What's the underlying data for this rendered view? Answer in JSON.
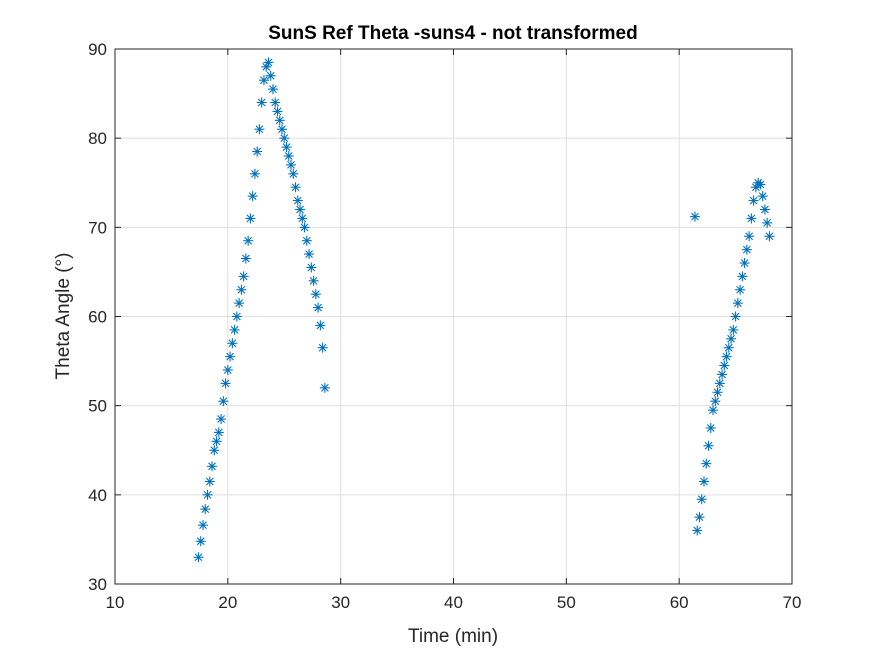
{
  "chart_data": {
    "type": "scatter",
    "title": "SunS Ref Theta -suns4 - not transformed",
    "xlabel": "Time (min)",
    "ylabel": "Theta Angle (°)",
    "xlim": [
      10,
      70
    ],
    "ylim": [
      30,
      90
    ],
    "xticks": [
      "10",
      "20",
      "30",
      "40",
      "50",
      "60",
      "70"
    ],
    "yticks": [
      "30",
      "40",
      "50",
      "60",
      "70",
      "80",
      "90"
    ],
    "grid": true,
    "marker": "asterisk",
    "color": "#0072BD",
    "series": [
      {
        "x": [
          17.4,
          17.6,
          17.8,
          18.0,
          18.2,
          18.4,
          18.6,
          18.8,
          19.0,
          19.2,
          19.4,
          19.6,
          19.8,
          20.0,
          20.2,
          20.4,
          20.6,
          20.8,
          21.0,
          21.2,
          21.4,
          21.6,
          21.8,
          22.0,
          22.2,
          22.4,
          22.6,
          22.8,
          23.0,
          23.2,
          23.4,
          23.6,
          23.8,
          24.0,
          24.2,
          24.4,
          24.6,
          24.8,
          25.0,
          25.2,
          25.4,
          25.6,
          25.8,
          26.0,
          26.2,
          26.4,
          26.6,
          26.8,
          27.0,
          27.2,
          27.4,
          27.6,
          27.8,
          28.0,
          28.2,
          28.4,
          28.6,
          61.4,
          61.6,
          61.8,
          62.0,
          62.2,
          62.4,
          62.6,
          62.8,
          63.0,
          63.2,
          63.4,
          63.6,
          63.8,
          64.0,
          64.2,
          64.4,
          64.6,
          64.8,
          65.0,
          65.2,
          65.4,
          65.6,
          65.8,
          66.0,
          66.2,
          66.4,
          66.6,
          66.8,
          67.0,
          67.2,
          67.4,
          67.6,
          67.8,
          68.0
        ],
        "y": [
          33.0,
          34.8,
          36.6,
          38.4,
          40.0,
          41.5,
          43.2,
          45.0,
          46.0,
          47.0,
          48.5,
          50.5,
          52.5,
          54.0,
          55.5,
          57.0,
          58.5,
          60.0,
          61.5,
          63.0,
          64.5,
          66.5,
          68.5,
          71.0,
          73.5,
          76.0,
          78.5,
          81.0,
          84.0,
          86.5,
          88.0,
          88.5,
          87.0,
          85.5,
          84.0,
          83.0,
          82.0,
          81.0,
          80.0,
          79.0,
          78.0,
          77.0,
          76.0,
          74.5,
          73.0,
          72.0,
          71.0,
          70.0,
          68.5,
          67.0,
          65.5,
          64.0,
          62.5,
          61.0,
          59.0,
          56.5,
          52.0,
          71.2,
          36.0,
          37.5,
          39.5,
          41.5,
          43.5,
          45.5,
          47.5,
          49.5,
          50.5,
          51.5,
          52.5,
          53.5,
          54.5,
          55.5,
          56.5,
          57.5,
          58.5,
          60.0,
          61.5,
          63.0,
          64.5,
          66.0,
          67.5,
          69.0,
          71.0,
          73.0,
          74.5,
          75.0,
          74.8,
          73.5,
          72.0,
          70.5,
          69.0
        ]
      }
    ]
  }
}
